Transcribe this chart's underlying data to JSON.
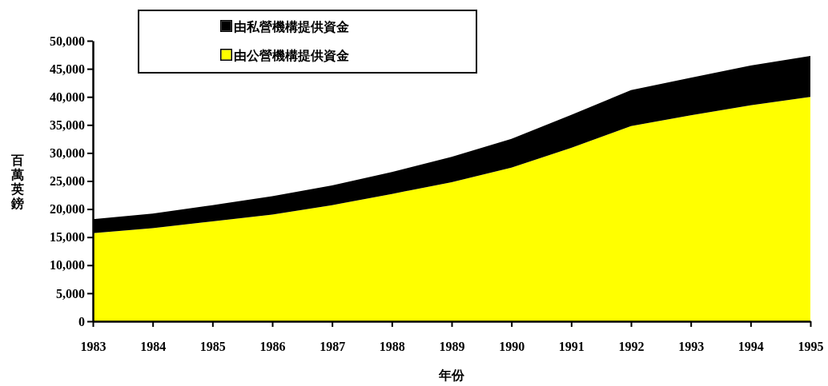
{
  "chart_data": {
    "type": "area",
    "stacked": true,
    "xlabel": "年份",
    "ylabel": "百萬英鎊",
    "x": [
      1983,
      1984,
      1985,
      1986,
      1987,
      1988,
      1989,
      1990,
      1991,
      1992,
      1993,
      1994,
      1995
    ],
    "xlim": [
      1983,
      1995
    ],
    "xticks": [
      1983,
      1984,
      1985,
      1986,
      1987,
      1988,
      1989,
      1990,
      1991,
      1992,
      1993,
      1994,
      1995
    ],
    "ylim": [
      0,
      50000
    ],
    "yticks": [
      {
        "value": 0,
        "label": "0"
      },
      {
        "value": 5000,
        "label": "5,000"
      },
      {
        "value": 10000,
        "label": "10,000"
      },
      {
        "value": 15000,
        "label": "15,000"
      },
      {
        "value": 20000,
        "label": "20,000"
      },
      {
        "value": 25000,
        "label": "25,000"
      },
      {
        "value": 30000,
        "label": "30,000"
      },
      {
        "value": 35000,
        "label": "35,000"
      },
      {
        "value": 40000,
        "label": "40,000"
      },
      {
        "value": 45000,
        "label": "45,000"
      },
      {
        "value": 50000,
        "label": "50,000"
      }
    ],
    "legend": "top",
    "grid": false,
    "series": [
      {
        "name": "由公營機構提供資金",
        "color": "#ffff00",
        "values": [
          15700,
          16600,
          17800,
          19000,
          20700,
          22700,
          24800,
          27400,
          30900,
          34800,
          36700,
          38500,
          40000
        ]
      },
      {
        "name": "由私營機構提供資金",
        "color": "#000000",
        "values": [
          2500,
          2600,
          2900,
          3300,
          3500,
          3900,
          4500,
          5100,
          5900,
          6400,
          6700,
          7100,
          7300
        ]
      }
    ]
  }
}
